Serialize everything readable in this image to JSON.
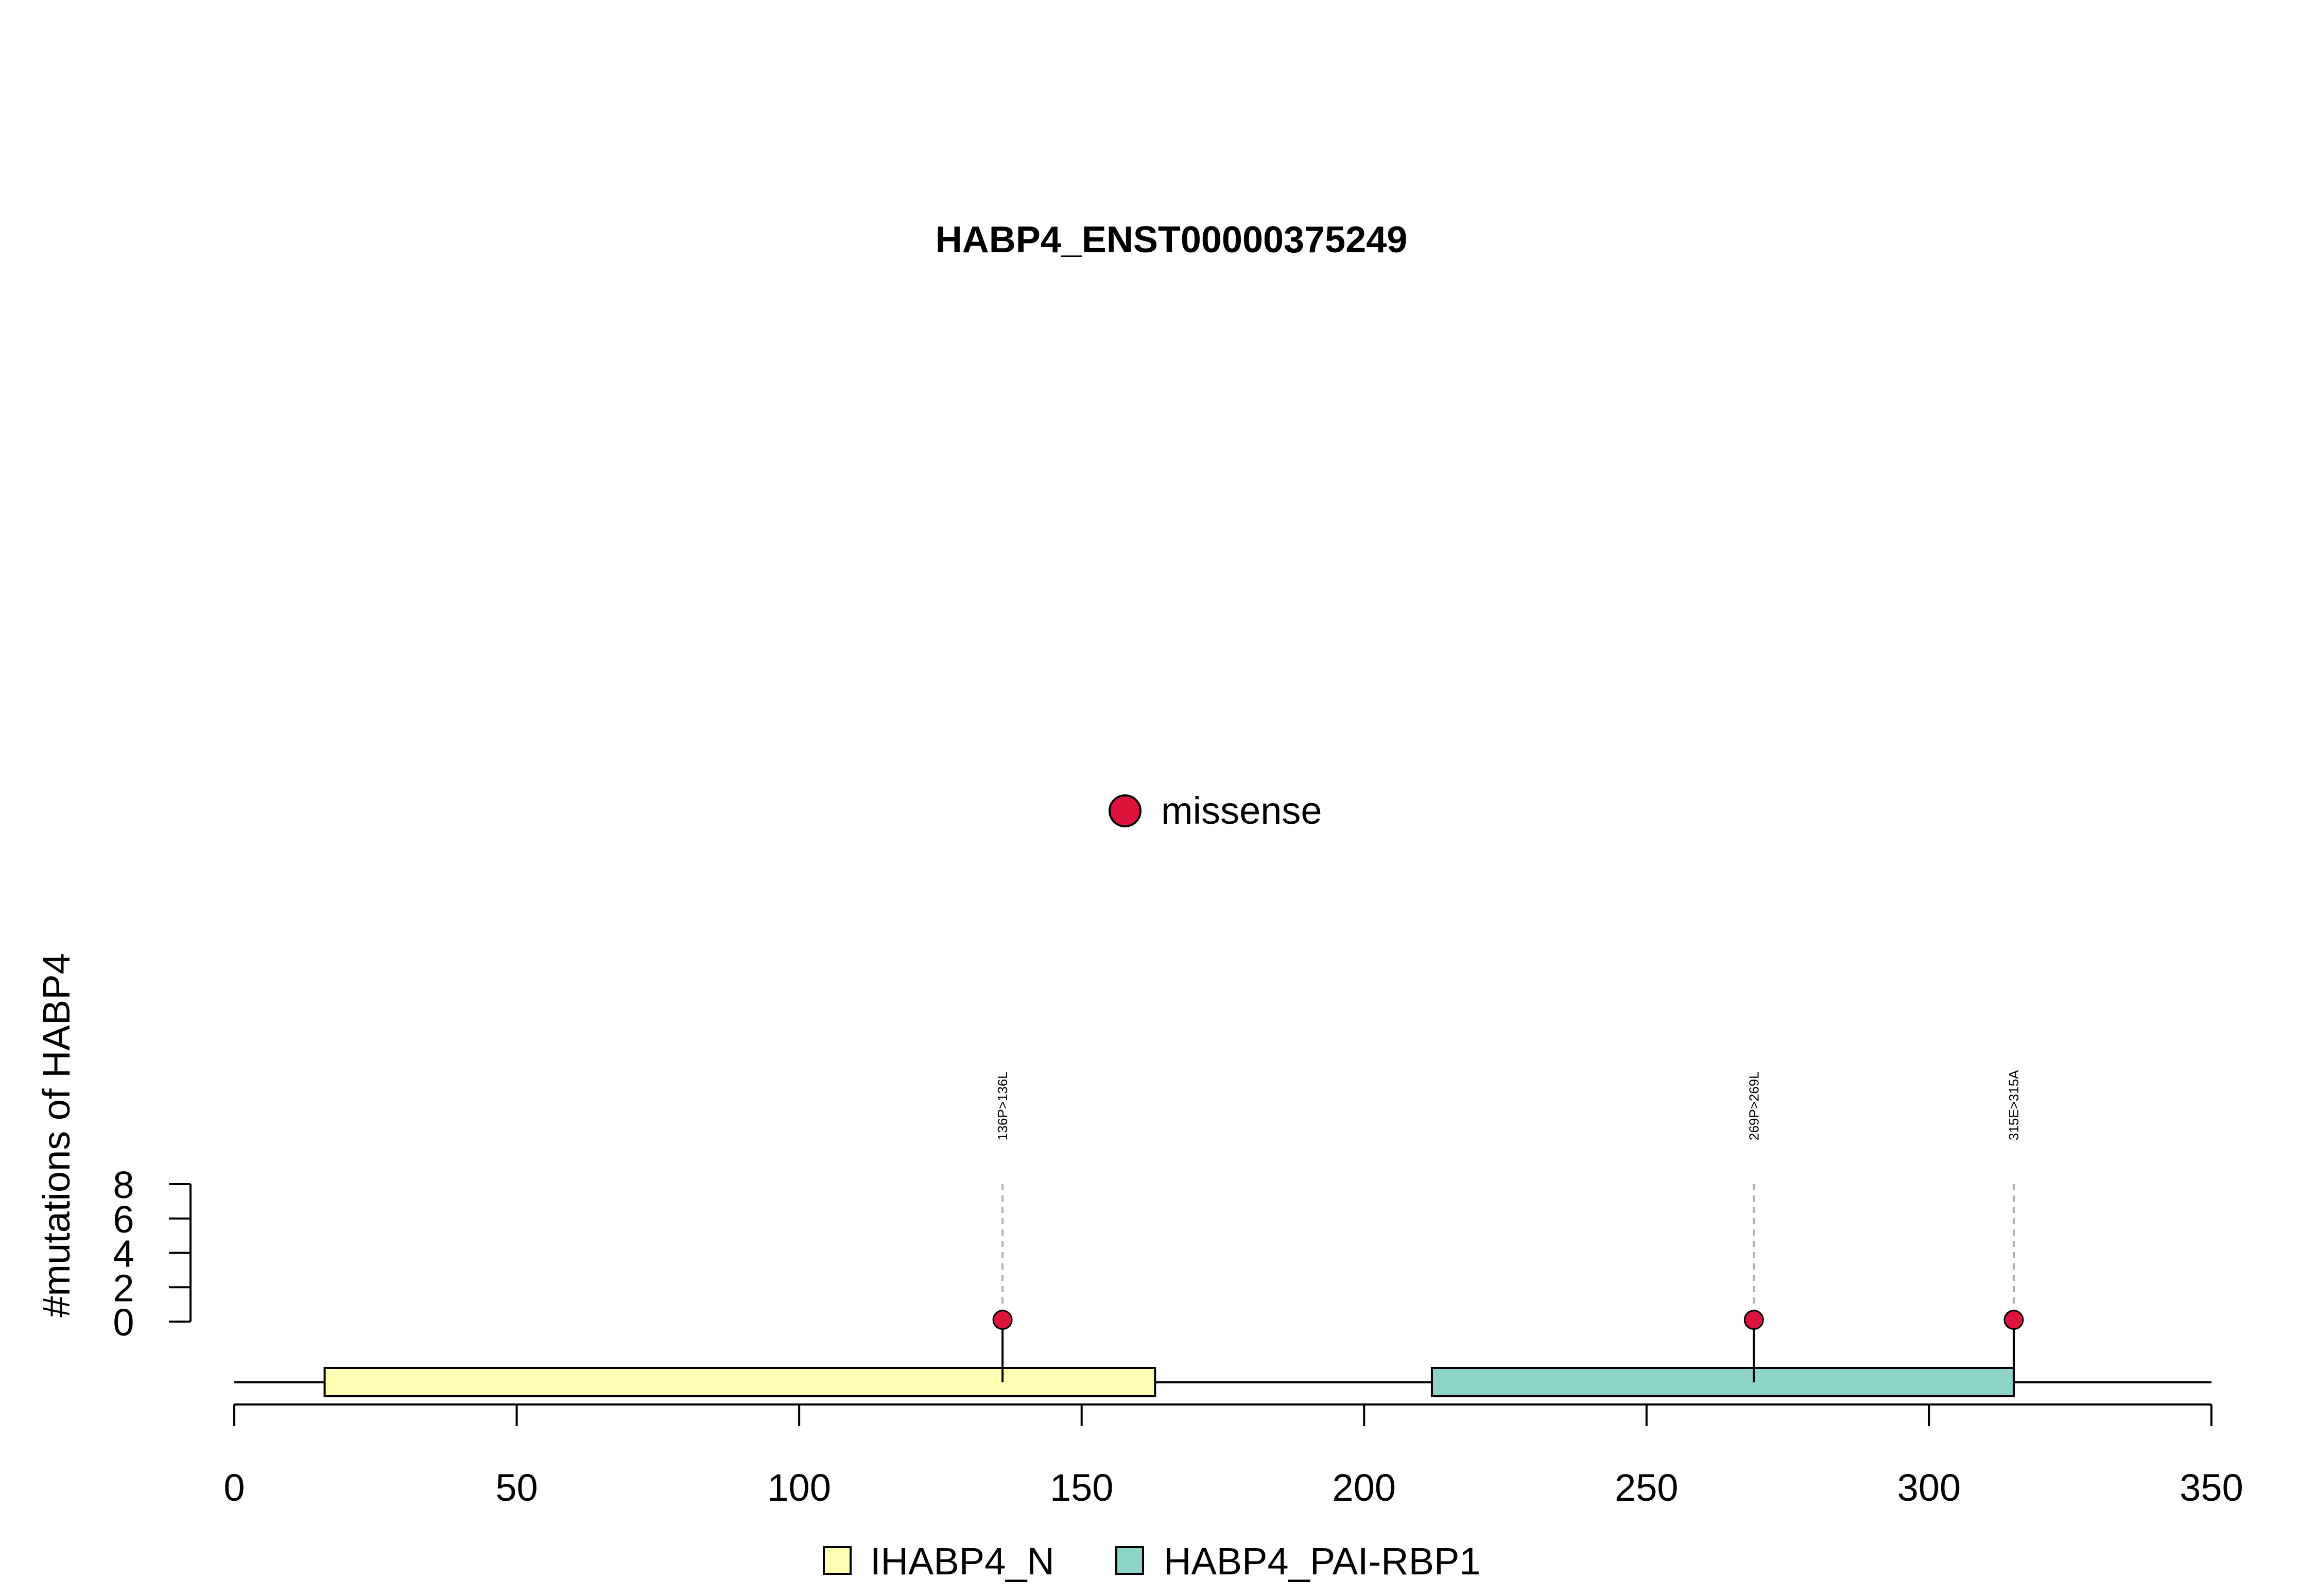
{
  "chart_data": {
    "type": "lollipop",
    "title": "HABP4_ENST00000375249",
    "ylabel": "#mutations of HABP4",
    "xlim": [
      0,
      350
    ],
    "x_ticks": [
      0,
      50,
      100,
      150,
      200,
      250,
      300,
      350
    ],
    "ylim": [
      0,
      8
    ],
    "y_ticks": [
      0,
      2,
      4,
      6,
      8
    ],
    "protein_length": 350,
    "domains": [
      {
        "name": "IHABP4_N",
        "start": 16,
        "end": 163,
        "color": "#FFFFB3"
      },
      {
        "name": "HABP4_PAI-RBP1",
        "start": 212,
        "end": 315,
        "color": "#8DD3C7"
      }
    ],
    "mutations": [
      {
        "label": "136P>136L",
        "position": 136,
        "count": 1,
        "type": "missense"
      },
      {
        "label": "269P>269L",
        "position": 269,
        "count": 1,
        "type": "missense"
      },
      {
        "label": "315E>315A",
        "position": 315,
        "count": 1,
        "type": "missense"
      }
    ],
    "mutation_legend": [
      {
        "label": "missense",
        "color": "#DC143C"
      }
    ],
    "domain_legend": [
      {
        "label": "IHABP4_N",
        "color": "#FFFFB3"
      },
      {
        "label": "HABP4_PAI-RBP1",
        "color": "#8DD3C7"
      }
    ],
    "legend_placement": "bottom-center"
  }
}
